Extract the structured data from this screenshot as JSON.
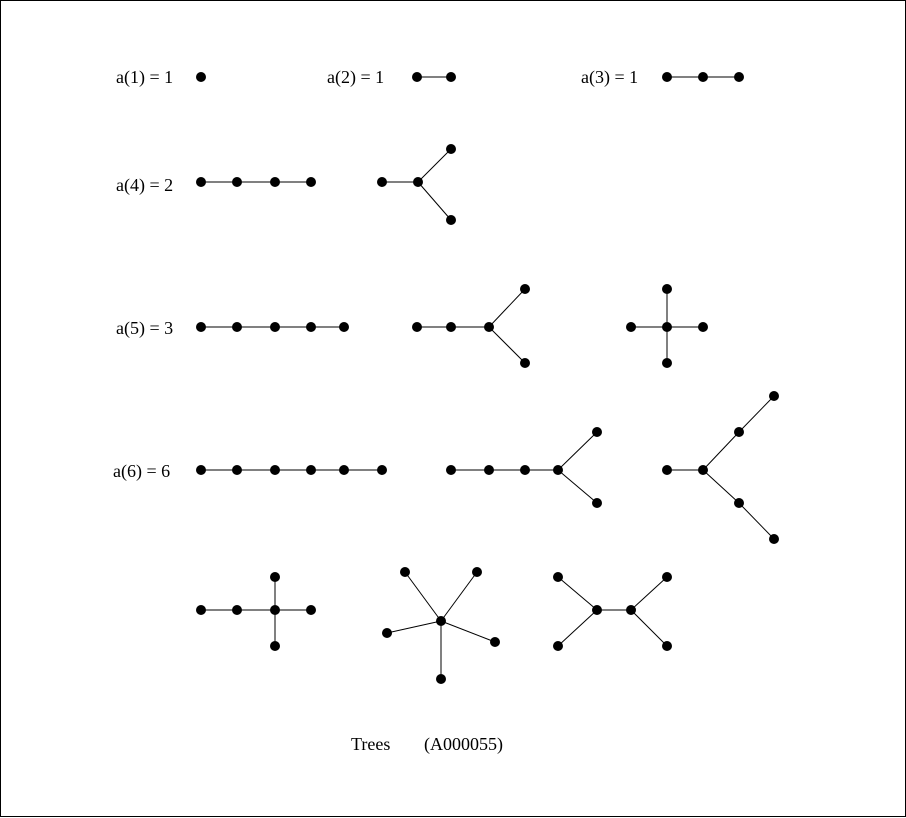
{
  "labels": {
    "a1": "a(1) = 1",
    "a2": "a(2) = 1",
    "a3": "a(3) = 1",
    "a4": "a(4) = 2",
    "a5": "a(5) = 3",
    "a6": "a(6) = 6"
  },
  "caption": {
    "title": "Trees",
    "id": "(A000055)"
  },
  "colors": {
    "ink": "#000000",
    "background": "#ffffff"
  }
}
